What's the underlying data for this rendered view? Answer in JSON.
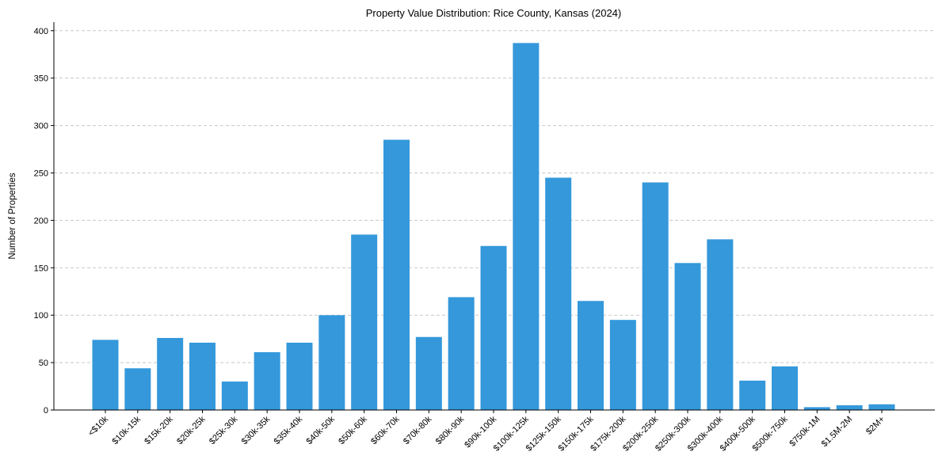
{
  "chart_data": {
    "type": "bar",
    "title": "Property Value Distribution: Rice County, Kansas (2024)",
    "xlabel": "",
    "ylabel": "Number of Properties",
    "ylim": [
      0,
      409
    ],
    "yticks": [
      0,
      50,
      100,
      150,
      200,
      250,
      300,
      350,
      400
    ],
    "grid": "y-dashed",
    "color": "#3498db",
    "categories": [
      "<$10k",
      "$10k-15k",
      "$15k-20k",
      "$20k-25k",
      "$25k-30k",
      "$30k-35k",
      "$35k-40k",
      "$40k-50k",
      "$50k-60k",
      "$60k-70k",
      "$70k-80k",
      "$80k-90k",
      "$90k-100k",
      "$100k-125k",
      "$125k-150k",
      "$150k-175k",
      "$175k-200k",
      "$200k-250k",
      "$250k-300k",
      "$300k-400k",
      "$400k-500k",
      "$500k-750k",
      "$750k-1M",
      "$1.5M-2M",
      "$2M+"
    ],
    "values": [
      74,
      44,
      76,
      71,
      30,
      61,
      71,
      100,
      185,
      285,
      77,
      119,
      173,
      387,
      245,
      115,
      95,
      240,
      155,
      180,
      31,
      46,
      3,
      5,
      6
    ]
  }
}
